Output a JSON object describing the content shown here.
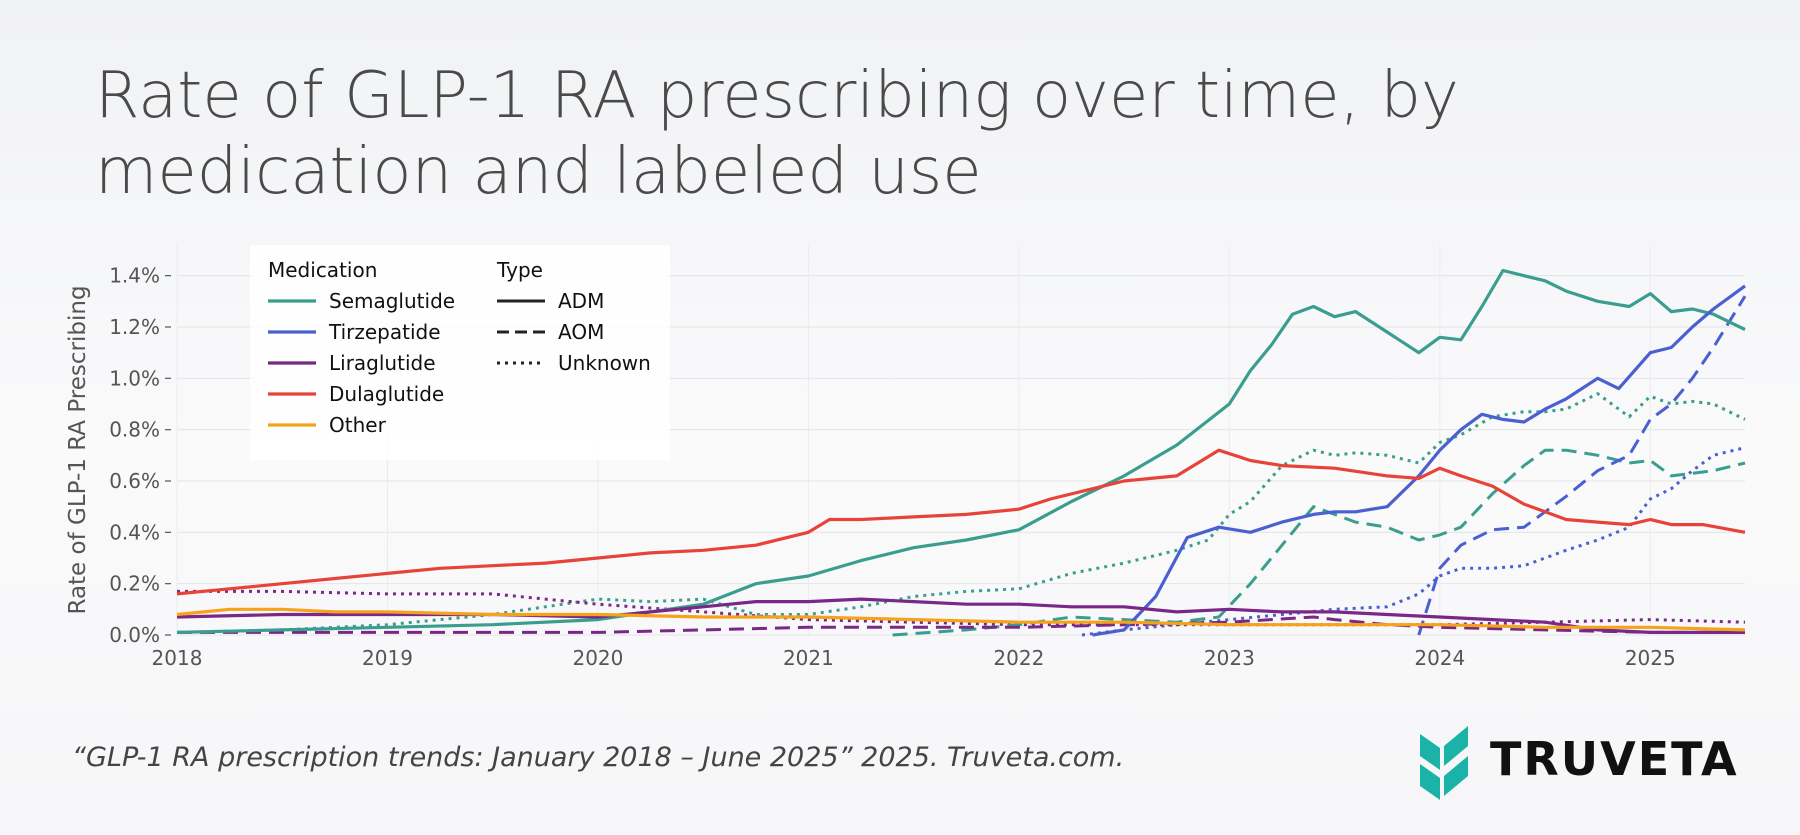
{
  "title": "Rate of GLP-1 RA prescribing over time, by medication and labeled use",
  "caption": "“GLP-1 RA prescription trends: January 2018 – June 2025” 2025. Truveta.com.",
  "brand": "TRUVETA",
  "colors": {
    "semaglutide": "#3a9e8e",
    "tirzepatide": "#4a60d0",
    "liraglutide": "#7a2888",
    "dulaglutide": "#e84339",
    "other": "#f4a31b",
    "logo": "#1bb3a8"
  },
  "chart_data": {
    "type": "line",
    "title": "Rate of GLP-1 RA prescribing over time, by medication and labeled use",
    "ylabel": "Rate of GLP-1 RA Prescribing",
    "xlabel": "",
    "xlim": [
      2018.0,
      2025.45
    ],
    "ylim": [
      0,
      1.5
    ],
    "x_ticks": [
      "2018",
      "2019",
      "2020",
      "2021",
      "2022",
      "2023",
      "2024",
      "2025"
    ],
    "y_ticks": [
      "0.0%",
      "0.2%",
      "0.4%",
      "0.6%",
      "0.8%",
      "1.0%",
      "1.2%",
      "1.4%"
    ],
    "legend": {
      "medication_title": "Medication",
      "type_title": "Type",
      "medications": [
        {
          "key": "semaglutide",
          "label": "Semaglutide"
        },
        {
          "key": "tirzepatide",
          "label": "Tirzepatide"
        },
        {
          "key": "liraglutide",
          "label": "Liraglutide"
        },
        {
          "key": "dulaglutide",
          "label": "Dulaglutide"
        },
        {
          "key": "other",
          "label": "Other"
        }
      ],
      "types": [
        {
          "key": "adm",
          "label": "ADM"
        },
        {
          "key": "aom",
          "label": "AOM"
        },
        {
          "key": "unknown",
          "label": "Unknown"
        }
      ]
    },
    "series": [
      {
        "name": "Semaglutide ADM",
        "medication": "semaglutide",
        "type": "adm",
        "x": [
          2018.0,
          2018.5,
          2019.0,
          2019.5,
          2020.0,
          2020.25,
          2020.5,
          2020.75,
          2021.0,
          2021.25,
          2021.5,
          2021.75,
          2022.0,
          2022.25,
          2022.5,
          2022.75,
          2023.0,
          2023.1,
          2023.2,
          2023.3,
          2023.4,
          2023.5,
          2023.6,
          2023.75,
          2023.9,
          2024.0,
          2024.1,
          2024.2,
          2024.3,
          2024.4,
          2024.5,
          2024.6,
          2024.75,
          2024.9,
          2025.0,
          2025.1,
          2025.2,
          2025.3,
          2025.45
        ],
        "y": [
          0.01,
          0.02,
          0.03,
          0.04,
          0.06,
          0.09,
          0.12,
          0.2,
          0.23,
          0.29,
          0.34,
          0.37,
          0.41,
          0.52,
          0.62,
          0.74,
          0.9,
          1.03,
          1.13,
          1.25,
          1.28,
          1.24,
          1.26,
          1.18,
          1.1,
          1.16,
          1.15,
          1.28,
          1.42,
          1.4,
          1.38,
          1.34,
          1.3,
          1.28,
          1.33,
          1.26,
          1.27,
          1.25,
          1.19
        ]
      },
      {
        "name": "Semaglutide AOM",
        "medication": "semaglutide",
        "type": "aom",
        "x": [
          2021.4,
          2021.75,
          2022.0,
          2022.25,
          2022.5,
          2022.75,
          2022.95,
          2023.1,
          2023.25,
          2023.4,
          2023.5,
          2023.6,
          2023.75,
          2023.9,
          2024.0,
          2024.1,
          2024.25,
          2024.4,
          2024.5,
          2024.6,
          2024.75,
          2024.9,
          2025.0,
          2025.1,
          2025.2,
          2025.3,
          2025.45
        ],
        "y": [
          0.0,
          0.02,
          0.04,
          0.07,
          0.06,
          0.05,
          0.07,
          0.2,
          0.35,
          0.5,
          0.47,
          0.44,
          0.42,
          0.37,
          0.39,
          0.42,
          0.55,
          0.66,
          0.72,
          0.72,
          0.7,
          0.67,
          0.68,
          0.62,
          0.63,
          0.64,
          0.67
        ]
      },
      {
        "name": "Semaglutide Unknown",
        "medication": "semaglutide",
        "type": "unknown",
        "x": [
          2018.0,
          2018.5,
          2019.0,
          2019.5,
          2019.75,
          2020.0,
          2020.25,
          2020.5,
          2020.75,
          2021.0,
          2021.25,
          2021.5,
          2021.75,
          2022.0,
          2022.25,
          2022.5,
          2022.75,
          2022.9,
          2023.0,
          2023.1,
          2023.25,
          2023.4,
          2023.5,
          2023.6,
          2023.75,
          2023.9,
          2024.0,
          2024.1,
          2024.25,
          2024.4,
          2024.5,
          2024.6,
          2024.75,
          2024.9,
          2025.0,
          2025.1,
          2025.2,
          2025.3,
          2025.45
        ],
        "y": [
          0.01,
          0.02,
          0.04,
          0.08,
          0.11,
          0.14,
          0.13,
          0.14,
          0.08,
          0.08,
          0.11,
          0.15,
          0.17,
          0.18,
          0.24,
          0.28,
          0.33,
          0.37,
          0.47,
          0.52,
          0.66,
          0.72,
          0.7,
          0.71,
          0.7,
          0.67,
          0.75,
          0.78,
          0.85,
          0.87,
          0.87,
          0.88,
          0.94,
          0.85,
          0.93,
          0.9,
          0.91,
          0.9,
          0.84
        ]
      },
      {
        "name": "Tirzepatide ADM",
        "medication": "tirzepatide",
        "type": "adm",
        "x": [
          2022.35,
          2022.5,
          2022.65,
          2022.8,
          2022.95,
          2023.1,
          2023.25,
          2023.4,
          2023.5,
          2023.6,
          2023.75,
          2023.9,
          2024.0,
          2024.1,
          2024.2,
          2024.3,
          2024.4,
          2024.5,
          2024.6,
          2024.75,
          2024.85,
          2025.0,
          2025.1,
          2025.2,
          2025.3,
          2025.45
        ],
        "y": [
          0.0,
          0.02,
          0.15,
          0.38,
          0.42,
          0.4,
          0.44,
          0.47,
          0.48,
          0.48,
          0.5,
          0.62,
          0.72,
          0.8,
          0.86,
          0.84,
          0.83,
          0.88,
          0.92,
          1.0,
          0.96,
          1.1,
          1.12,
          1.2,
          1.27,
          1.36
        ]
      },
      {
        "name": "Tirzepatide AOM",
        "medication": "tirzepatide",
        "type": "aom",
        "x": [
          2023.9,
          2024.0,
          2024.1,
          2024.25,
          2024.4,
          2024.5,
          2024.6,
          2024.75,
          2024.9,
          2025.0,
          2025.1,
          2025.2,
          2025.3,
          2025.45
        ],
        "y": [
          0.0,
          0.26,
          0.35,
          0.41,
          0.42,
          0.48,
          0.54,
          0.64,
          0.7,
          0.84,
          0.9,
          1.0,
          1.12,
          1.32
        ]
      },
      {
        "name": "Tirzepatide Unknown",
        "medication": "tirzepatide",
        "type": "unknown",
        "x": [
          2022.3,
          2022.5,
          2022.75,
          2023.0,
          2023.25,
          2023.5,
          2023.75,
          2023.9,
          2024.0,
          2024.1,
          2024.25,
          2024.4,
          2024.5,
          2024.6,
          2024.75,
          2024.9,
          2025.0,
          2025.1,
          2025.2,
          2025.3,
          2025.45
        ],
        "y": [
          0.0,
          0.02,
          0.04,
          0.06,
          0.08,
          0.1,
          0.11,
          0.16,
          0.23,
          0.26,
          0.26,
          0.27,
          0.3,
          0.33,
          0.37,
          0.42,
          0.53,
          0.57,
          0.64,
          0.7,
          0.73
        ]
      },
      {
        "name": "Liraglutide ADM",
        "medication": "liraglutide",
        "type": "adm",
        "x": [
          2018.0,
          2018.5,
          2019.0,
          2019.5,
          2020.0,
          2020.5,
          2020.75,
          2021.0,
          2021.25,
          2021.5,
          2021.75,
          2022.0,
          2022.25,
          2022.5,
          2022.75,
          2023.0,
          2023.25,
          2023.5,
          2023.75,
          2024.0,
          2024.25,
          2024.5,
          2024.75,
          2025.0,
          2025.25,
          2025.45
        ],
        "y": [
          0.07,
          0.08,
          0.08,
          0.08,
          0.07,
          0.11,
          0.13,
          0.13,
          0.14,
          0.13,
          0.12,
          0.12,
          0.11,
          0.11,
          0.09,
          0.1,
          0.09,
          0.09,
          0.08,
          0.07,
          0.06,
          0.05,
          0.02,
          0.01,
          0.01,
          0.01
        ]
      },
      {
        "name": "Liraglutide AOM",
        "medication": "liraglutide",
        "type": "aom",
        "x": [
          2018.0,
          2018.5,
          2019.0,
          2019.5,
          2020.0,
          2020.5,
          2021.0,
          2021.5,
          2022.0,
          2022.5,
          2023.0,
          2023.4,
          2023.5,
          2023.75,
          2024.0,
          2024.5,
          2025.0,
          2025.45
        ],
        "y": [
          0.01,
          0.01,
          0.01,
          0.01,
          0.01,
          0.02,
          0.03,
          0.03,
          0.03,
          0.04,
          0.05,
          0.07,
          0.06,
          0.04,
          0.03,
          0.02,
          0.01,
          0.01
        ]
      },
      {
        "name": "Liraglutide Unknown",
        "medication": "liraglutide",
        "type": "unknown",
        "x": [
          2018.0,
          2018.5,
          2019.0,
          2019.5,
          2019.75,
          2020.0,
          2020.5,
          2021.0,
          2021.5,
          2022.0,
          2022.5,
          2023.0,
          2023.5,
          2024.0,
          2024.5,
          2025.0,
          2025.45
        ],
        "y": [
          0.17,
          0.17,
          0.16,
          0.16,
          0.14,
          0.12,
          0.09,
          0.06,
          0.05,
          0.04,
          0.04,
          0.04,
          0.04,
          0.04,
          0.05,
          0.06,
          0.05
        ]
      },
      {
        "name": "Dulaglutide ADM",
        "medication": "dulaglutide",
        "type": "adm",
        "x": [
          2018.0,
          2018.25,
          2018.5,
          2018.75,
          2019.0,
          2019.25,
          2019.5,
          2019.75,
          2020.0,
          2020.25,
          2020.5,
          2020.75,
          2021.0,
          2021.1,
          2021.25,
          2021.5,
          2021.75,
          2022.0,
          2022.15,
          2022.3,
          2022.5,
          2022.75,
          2022.95,
          2023.1,
          2023.25,
          2023.5,
          2023.75,
          2023.9,
          2024.0,
          2024.1,
          2024.25,
          2024.4,
          2024.5,
          2024.6,
          2024.75,
          2024.9,
          2025.0,
          2025.1,
          2025.25,
          2025.45
        ],
        "y": [
          0.16,
          0.18,
          0.2,
          0.22,
          0.24,
          0.26,
          0.27,
          0.28,
          0.3,
          0.32,
          0.33,
          0.35,
          0.4,
          0.45,
          0.45,
          0.46,
          0.47,
          0.49,
          0.53,
          0.56,
          0.6,
          0.62,
          0.72,
          0.68,
          0.66,
          0.65,
          0.62,
          0.61,
          0.65,
          0.62,
          0.58,
          0.51,
          0.48,
          0.45,
          0.44,
          0.43,
          0.45,
          0.43,
          0.43,
          0.4
        ]
      },
      {
        "name": "Other ADM",
        "medication": "other",
        "type": "adm",
        "x": [
          2018.0,
          2018.25,
          2018.5,
          2018.75,
          2019.0,
          2019.5,
          2020.0,
          2020.5,
          2021.0,
          2021.5,
          2022.0,
          2022.5,
          2023.0,
          2023.5,
          2024.0,
          2024.5,
          2025.0,
          2025.45
        ],
        "y": [
          0.08,
          0.1,
          0.1,
          0.09,
          0.09,
          0.08,
          0.08,
          0.07,
          0.07,
          0.06,
          0.05,
          0.05,
          0.04,
          0.04,
          0.04,
          0.03,
          0.03,
          0.02
        ]
      }
    ]
  }
}
